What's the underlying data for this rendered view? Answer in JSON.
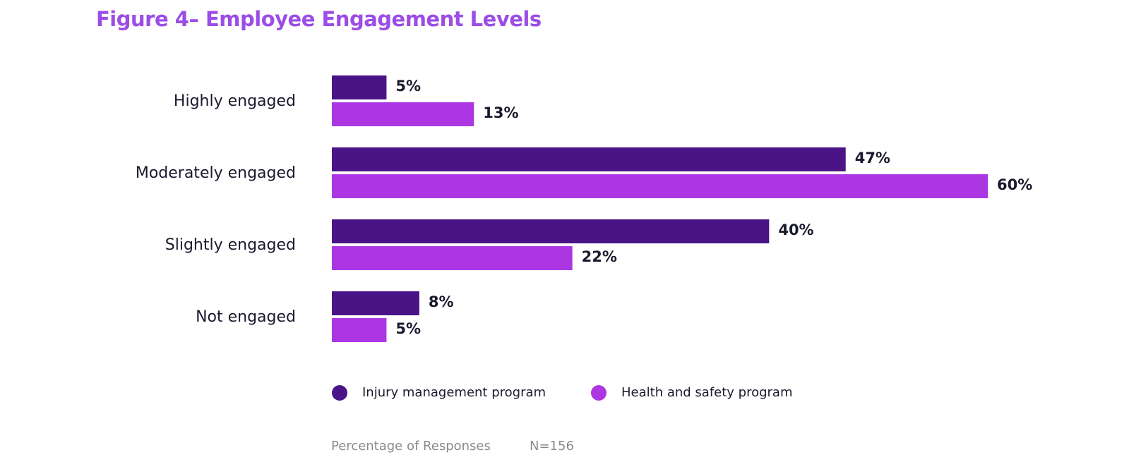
{
  "title": "Figure 4– Employee Engagement Levels",
  "chart_data": {
    "type": "bar",
    "orientation": "horizontal",
    "title": "Figure 4– Employee Engagement Levels",
    "categories": [
      "Highly engaged",
      "Moderately engaged",
      "Slightly engaged",
      "Not engaged"
    ],
    "series": [
      {
        "name": "Injury management program",
        "values": [
          5,
          47,
          40,
          8
        ],
        "labels": [
          "5%",
          "47%",
          "40%",
          "8%"
        ],
        "color": "#4a1486"
      },
      {
        "name": "Health and safety program",
        "values": [
          13,
          60,
          22,
          5
        ],
        "labels": [
          "13%",
          "60%",
          "22%",
          "5%"
        ],
        "color": "#ad36e3"
      }
    ],
    "xlim": [
      0,
      60
    ],
    "grid": false,
    "legend_position": "bottom"
  },
  "footer": {
    "xlabel": "Percentage of Responses",
    "sample": "N=156"
  }
}
